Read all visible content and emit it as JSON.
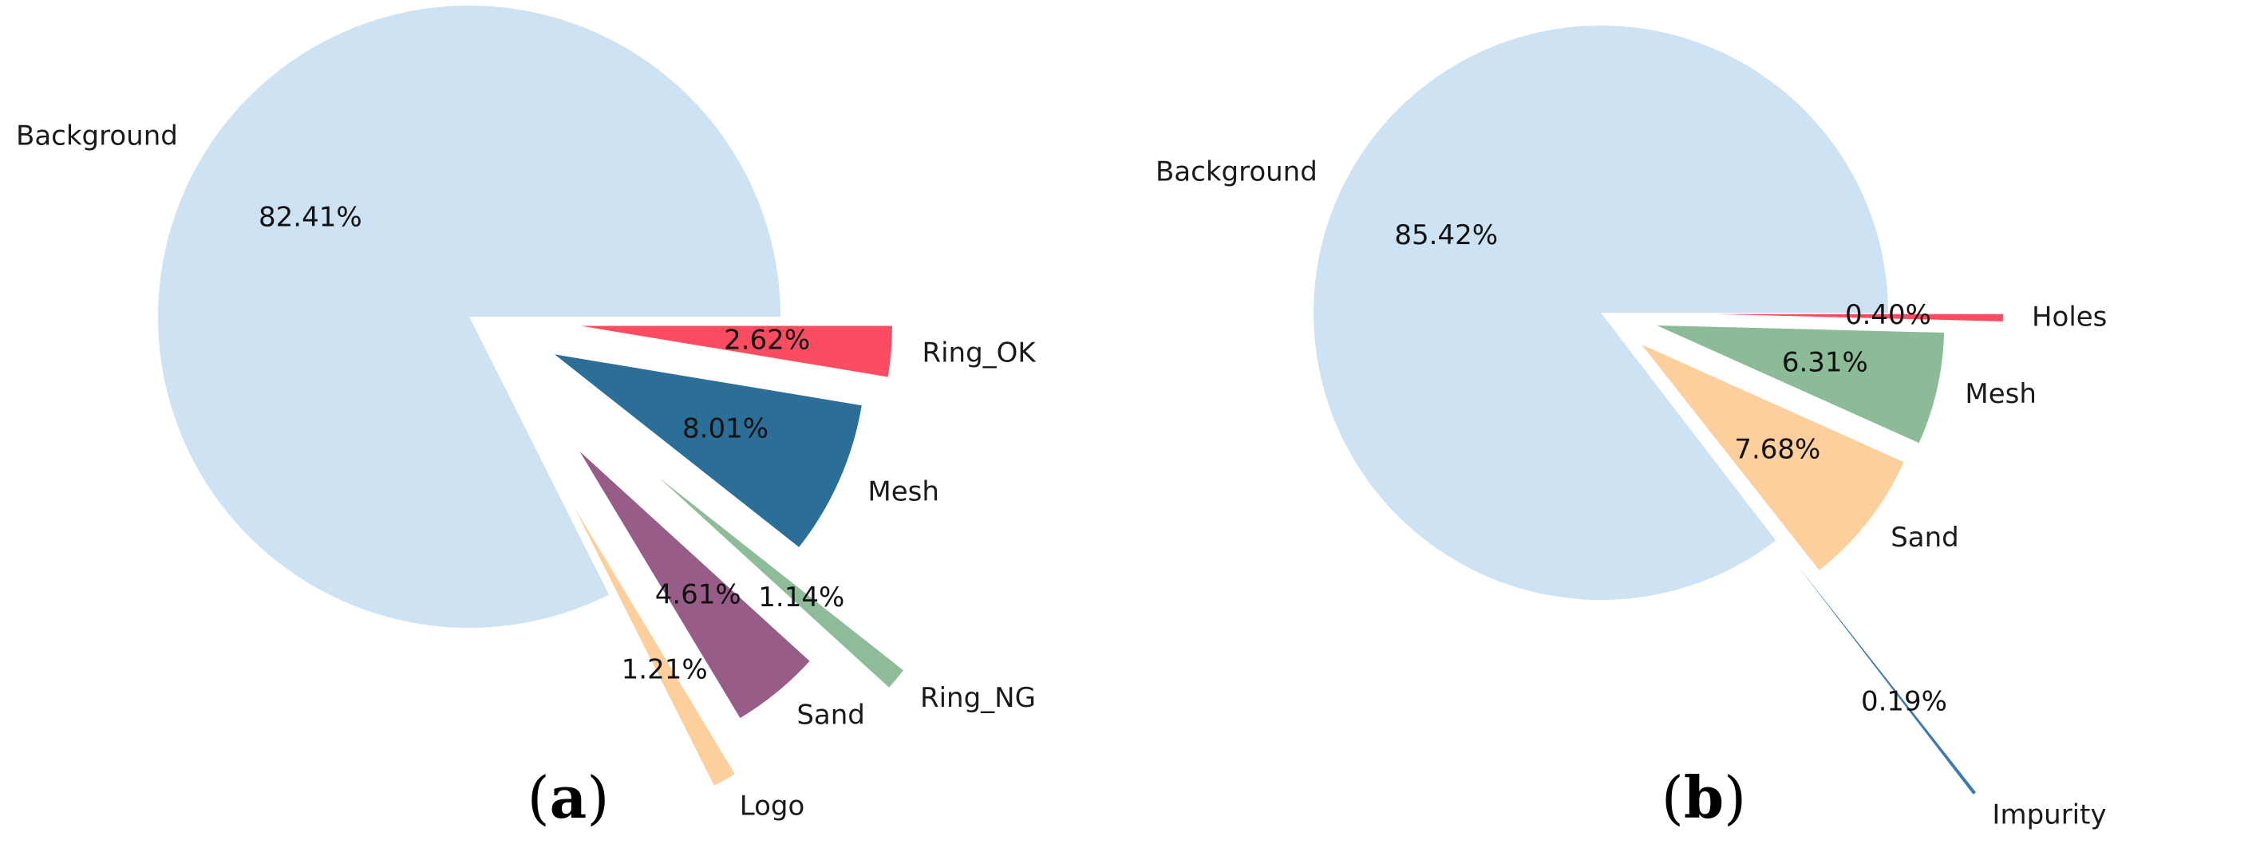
{
  "chart_data": [
    {
      "type": "pie",
      "panel_label": "a",
      "slices": [
        {
          "label": "Background",
          "value": 82.41,
          "pct_text": "82.41%",
          "color": "#cde3f3"
        },
        {
          "label": "Logo",
          "value": 1.21,
          "pct_text": "1.21%",
          "color": "#fdcf9c"
        },
        {
          "label": "Sand",
          "value": 4.61,
          "pct_text": "4.61%",
          "color": "#975c87"
        },
        {
          "label": "Ring_NG",
          "value": 1.14,
          "pct_text": "1.14%",
          "color": "#8fbc98"
        },
        {
          "label": "Mesh",
          "value": 8.01,
          "pct_text": "8.01%",
          "color": "#2b6e97"
        },
        {
          "label": "Ring_OK",
          "value": 2.62,
          "pct_text": "2.62%",
          "color": "#fc4c62"
        }
      ]
    },
    {
      "type": "pie",
      "panel_label": "b",
      "slices": [
        {
          "label": "Background",
          "value": 85.42,
          "pct_text": "85.42%",
          "color": "#cde3f3"
        },
        {
          "label": "Impurity",
          "value": 0.19,
          "pct_text": "0.19%",
          "color": "#3e79ad"
        },
        {
          "label": "Sand",
          "value": 7.68,
          "pct_text": "7.68%",
          "color": "#fdcf9c"
        },
        {
          "label": "Mesh",
          "value": 6.31,
          "pct_text": "6.31%",
          "color": "#8bbb97"
        },
        {
          "label": "Holes",
          "value": 0.4,
          "pct_text": "0.40%",
          "color": "#fc4c62"
        }
      ]
    }
  ]
}
